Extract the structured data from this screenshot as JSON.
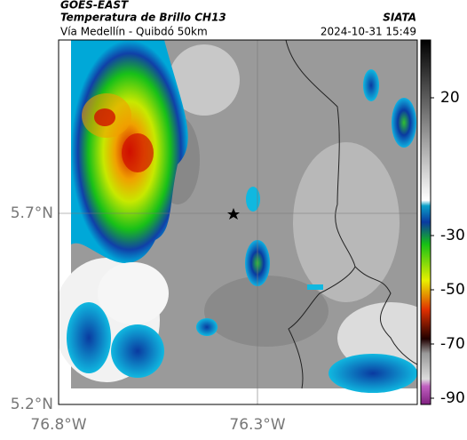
{
  "header": {
    "source": "GOES-EAST",
    "product": "Temperatura de Brillo CH13",
    "region": "Vía Medellín - Quibdó 50km",
    "credit": "SIATA",
    "timestamp": "2024-10-31 15:49"
  },
  "map": {
    "lat_labels": [
      "5.7°N",
      "5.2°N"
    ],
    "lon_labels": [
      "76.8°W",
      "76.3°W"
    ]
  },
  "colorbar": {
    "ticks": [
      20,
      -30,
      -50,
      -70,
      -90
    ]
  }
}
